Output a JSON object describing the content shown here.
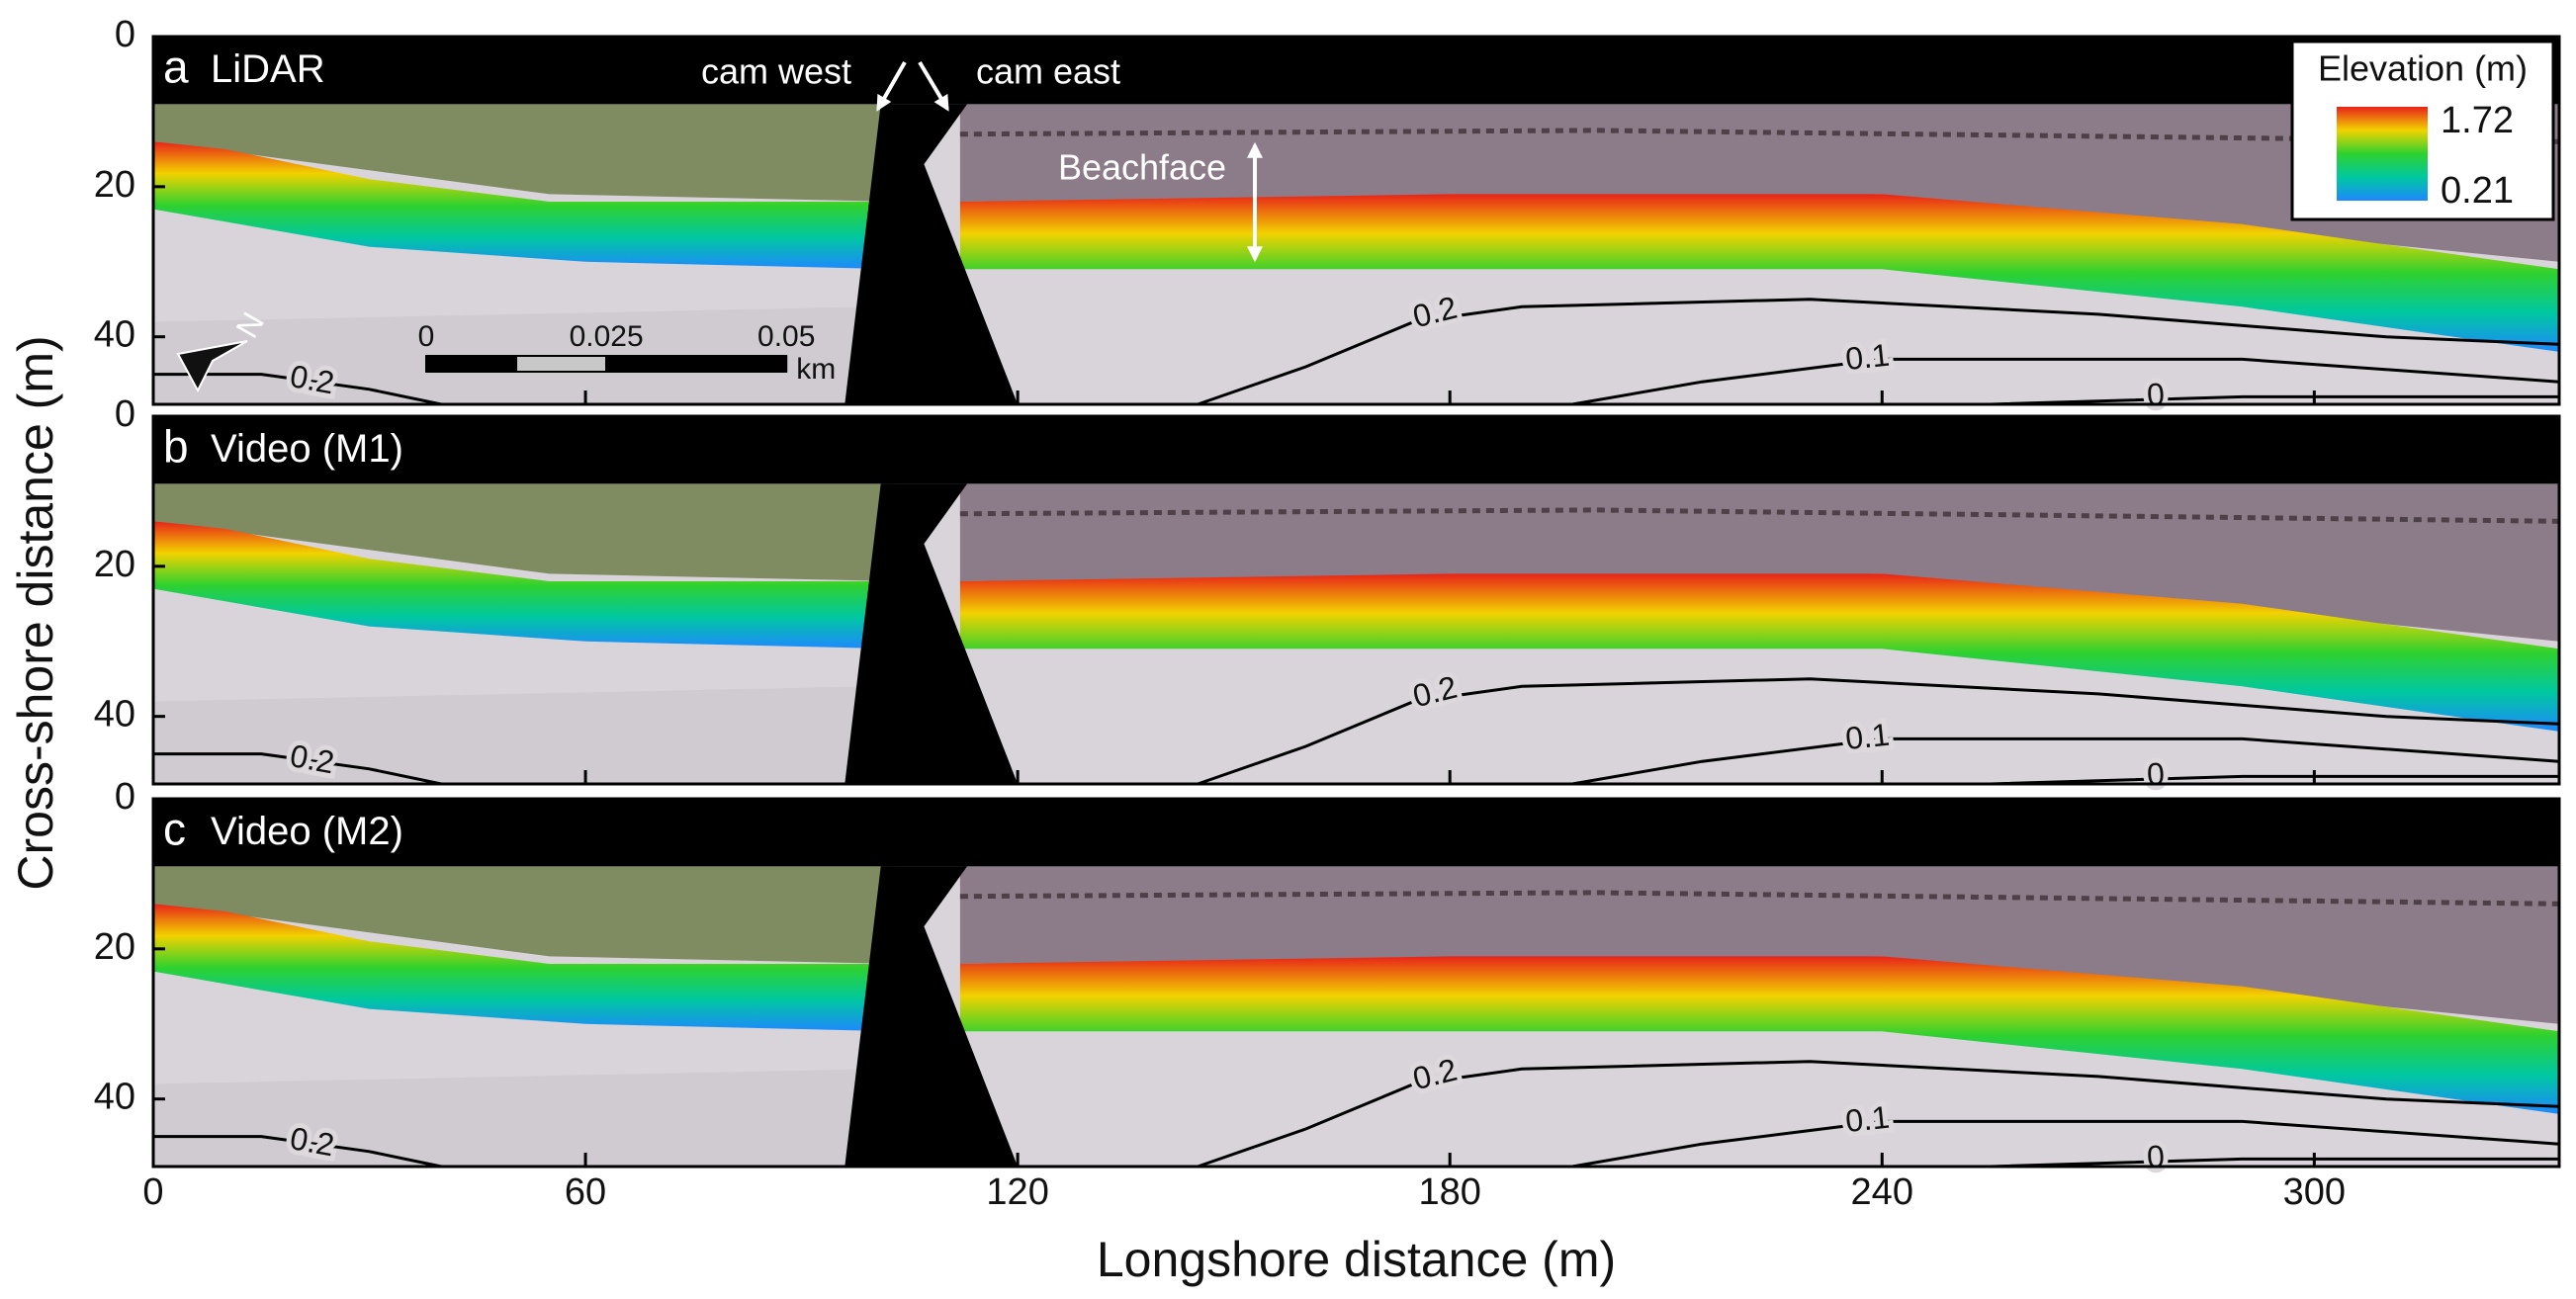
{
  "figure": {
    "x_label": "Longshore distance (m)",
    "y_label": "Cross-shore distance (m)",
    "xlim": [
      0,
      334
    ],
    "xticks": [
      0,
      60,
      120,
      180,
      240,
      300
    ],
    "ylim": [
      0,
      49
    ],
    "yticks": [
      0,
      20,
      40
    ],
    "panels": [
      {
        "letter": "a",
        "title": "LiDAR"
      },
      {
        "letter": "b",
        "title": "Video (M1)"
      },
      {
        "letter": "c",
        "title": "Video (M2)"
      }
    ],
    "contour_labels": [
      "0.2",
      "0.1",
      "0"
    ],
    "colorbar": {
      "title": "Elevation (m)",
      "max": 1.72,
      "min": 0.21,
      "colors": [
        "#e8231a",
        "#f2d200",
        "#2fd12f",
        "#00c8a0",
        "#1e88ff"
      ]
    },
    "annotations": {
      "cam_west": "cam west",
      "cam_east": "cam east",
      "beachface": "Beachface"
    },
    "scale_bar": {
      "ticks": [
        0,
        0.025,
        0.05
      ],
      "unit": "km"
    },
    "north": "N"
  }
}
